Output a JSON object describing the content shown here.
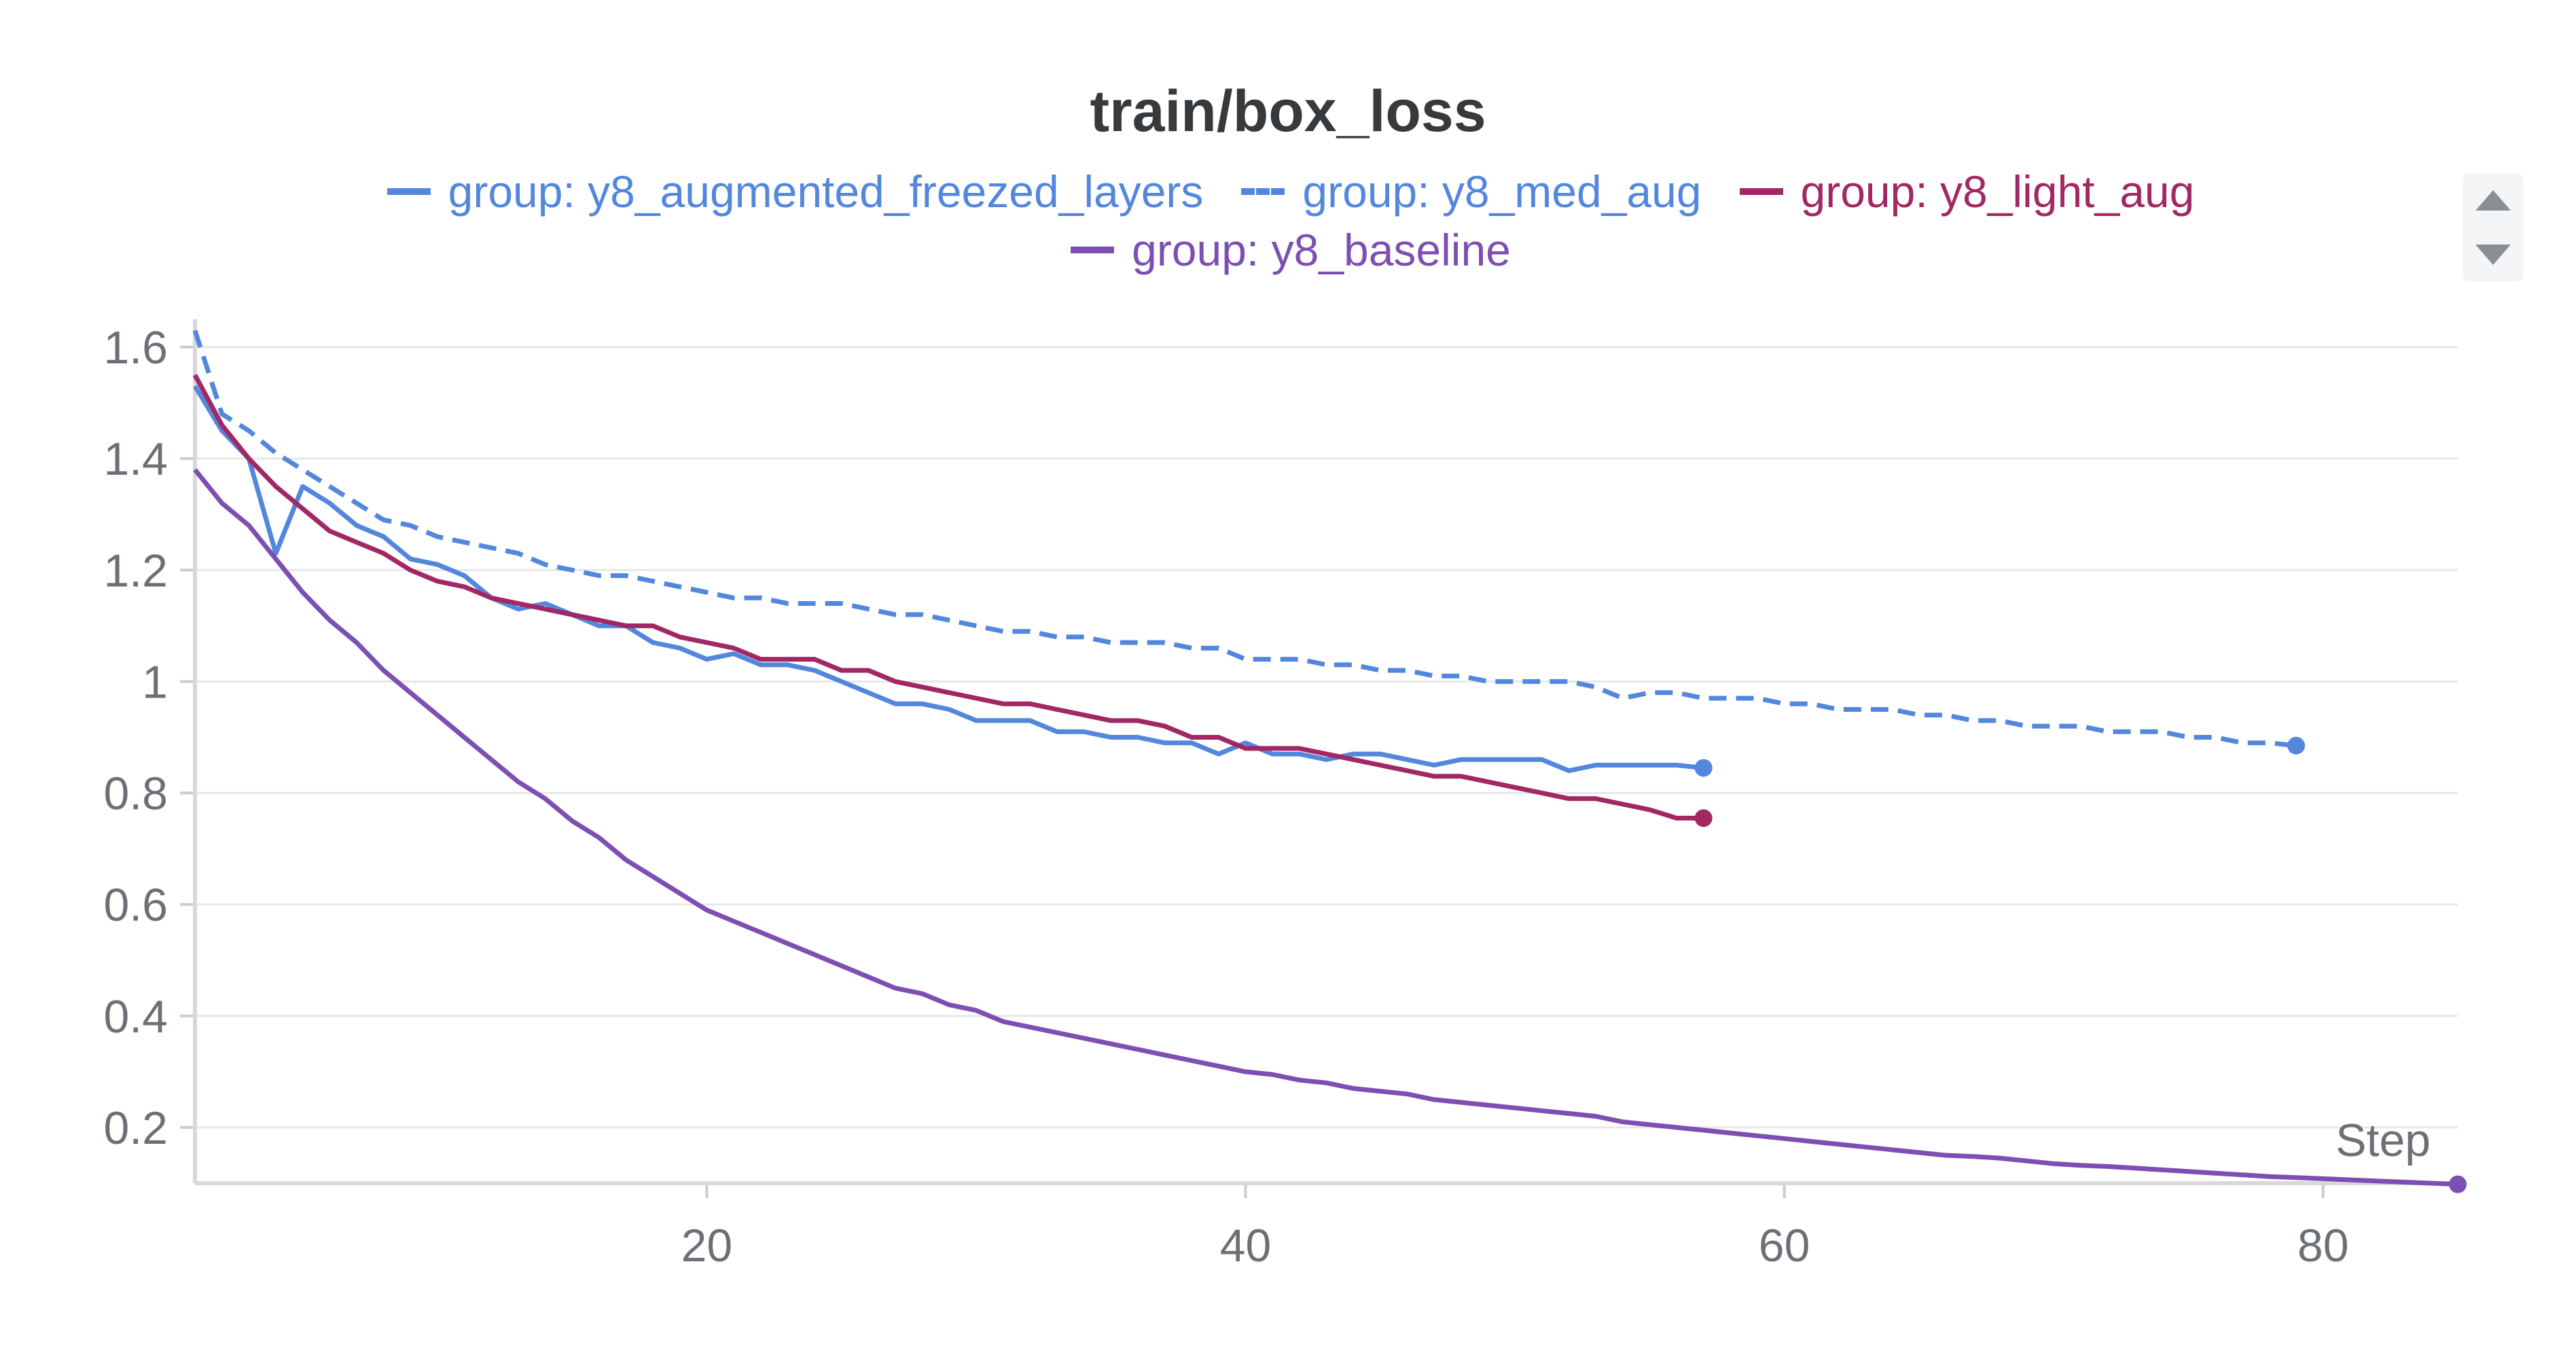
{
  "chart_data": {
    "type": "line",
    "title": "train/box_loss",
    "xlabel": "Step",
    "ylabel": "",
    "xlim": [
      1,
      85
    ],
    "ylim": [
      0.1,
      1.65
    ],
    "xticks": [
      20,
      40,
      60,
      80
    ],
    "yticks": [
      0.2,
      0.4,
      0.6,
      0.8,
      1,
      1.2,
      1.4,
      1.6
    ],
    "ytick_labels": [
      "0.2",
      "0.4",
      "0.6",
      "0.8",
      "1",
      "1.2",
      "1.4",
      "1.6"
    ],
    "grid": true,
    "legend_position": "top-center",
    "series": [
      {
        "name": "group: y8_augmented_freezed_layers",
        "color": "#5387dd",
        "dash": "solid",
        "x": [
          1,
          2,
          3,
          4,
          5,
          6,
          7,
          8,
          9,
          10,
          11,
          12,
          13,
          14,
          15,
          16,
          17,
          18,
          19,
          20,
          21,
          22,
          23,
          24,
          25,
          26,
          27,
          28,
          29,
          30,
          31,
          32,
          33,
          34,
          35,
          36,
          37,
          38,
          39,
          40,
          41,
          42,
          43,
          44,
          45,
          46,
          47,
          48,
          49,
          50,
          51,
          52,
          53,
          54,
          55,
          56,
          57
        ],
        "y": [
          1.53,
          1.45,
          1.4,
          1.23,
          1.35,
          1.32,
          1.28,
          1.26,
          1.22,
          1.21,
          1.19,
          1.15,
          1.13,
          1.14,
          1.12,
          1.1,
          1.1,
          1.07,
          1.06,
          1.04,
          1.05,
          1.03,
          1.03,
          1.02,
          1.0,
          0.98,
          0.96,
          0.96,
          0.95,
          0.93,
          0.93,
          0.93,
          0.91,
          0.91,
          0.9,
          0.9,
          0.89,
          0.89,
          0.87,
          0.89,
          0.87,
          0.87,
          0.86,
          0.87,
          0.87,
          0.86,
          0.85,
          0.86,
          0.86,
          0.86,
          0.86,
          0.84,
          0.85,
          0.85,
          0.85,
          0.85,
          0.845
        ]
      },
      {
        "name": "group: y8_med_aug",
        "color": "#5387dd",
        "dash": "dashed",
        "x": [
          1,
          2,
          3,
          4,
          5,
          6,
          7,
          8,
          9,
          10,
          11,
          12,
          13,
          14,
          15,
          16,
          17,
          18,
          19,
          20,
          21,
          22,
          23,
          24,
          25,
          26,
          27,
          28,
          29,
          30,
          31,
          32,
          33,
          34,
          35,
          36,
          37,
          38,
          39,
          40,
          41,
          42,
          43,
          44,
          45,
          46,
          47,
          48,
          49,
          50,
          51,
          52,
          53,
          54,
          55,
          56,
          57,
          58,
          59,
          60,
          61,
          62,
          63,
          64,
          65,
          66,
          67,
          68,
          69,
          70,
          71,
          72,
          73,
          74,
          75,
          76,
          77,
          78,
          79
        ],
        "y": [
          1.63,
          1.48,
          1.45,
          1.41,
          1.38,
          1.35,
          1.32,
          1.29,
          1.28,
          1.26,
          1.25,
          1.24,
          1.23,
          1.21,
          1.2,
          1.19,
          1.19,
          1.18,
          1.17,
          1.16,
          1.15,
          1.15,
          1.14,
          1.14,
          1.14,
          1.13,
          1.12,
          1.12,
          1.11,
          1.1,
          1.09,
          1.09,
          1.08,
          1.08,
          1.07,
          1.07,
          1.07,
          1.06,
          1.06,
          1.04,
          1.04,
          1.04,
          1.03,
          1.03,
          1.02,
          1.02,
          1.01,
          1.01,
          1.0,
          1.0,
          1.0,
          1.0,
          0.99,
          0.97,
          0.98,
          0.98,
          0.97,
          0.97,
          0.97,
          0.96,
          0.96,
          0.95,
          0.95,
          0.95,
          0.94,
          0.94,
          0.93,
          0.93,
          0.92,
          0.92,
          0.92,
          0.91,
          0.91,
          0.91,
          0.9,
          0.9,
          0.89,
          0.89,
          0.885
        ]
      },
      {
        "name": "group: y8_light_aug",
        "color": "#a12864",
        "dash": "solid",
        "x": [
          1,
          2,
          3,
          4,
          5,
          6,
          7,
          8,
          9,
          10,
          11,
          12,
          13,
          14,
          15,
          16,
          17,
          18,
          19,
          20,
          21,
          22,
          23,
          24,
          25,
          26,
          27,
          28,
          29,
          30,
          31,
          32,
          33,
          34,
          35,
          36,
          37,
          38,
          39,
          40,
          41,
          42,
          43,
          44,
          45,
          46,
          47,
          48,
          49,
          50,
          51,
          52,
          53,
          54,
          55,
          56,
          57
        ],
        "y": [
          1.55,
          1.46,
          1.4,
          1.35,
          1.31,
          1.27,
          1.25,
          1.23,
          1.2,
          1.18,
          1.17,
          1.15,
          1.14,
          1.13,
          1.12,
          1.11,
          1.1,
          1.1,
          1.08,
          1.07,
          1.06,
          1.04,
          1.04,
          1.04,
          1.02,
          1.02,
          1.0,
          0.99,
          0.98,
          0.97,
          0.96,
          0.96,
          0.95,
          0.94,
          0.93,
          0.93,
          0.92,
          0.9,
          0.9,
          0.88,
          0.88,
          0.88,
          0.87,
          0.86,
          0.85,
          0.84,
          0.83,
          0.83,
          0.82,
          0.81,
          0.8,
          0.79,
          0.79,
          0.78,
          0.77,
          0.755,
          0.755
        ]
      },
      {
        "name": "group: y8_baseline",
        "color": "#7e4fb3",
        "dash": "solid",
        "x": [
          1,
          2,
          3,
          4,
          5,
          6,
          7,
          8,
          9,
          10,
          11,
          12,
          13,
          14,
          15,
          16,
          17,
          18,
          19,
          20,
          21,
          22,
          23,
          24,
          25,
          26,
          27,
          28,
          29,
          30,
          31,
          32,
          33,
          34,
          35,
          36,
          37,
          38,
          39,
          40,
          41,
          42,
          43,
          44,
          45,
          46,
          47,
          48,
          49,
          50,
          51,
          52,
          53,
          54,
          55,
          56,
          57,
          58,
          59,
          60,
          61,
          62,
          63,
          64,
          65,
          66,
          67,
          68,
          69,
          70,
          71,
          72,
          73,
          74,
          75,
          76,
          77,
          78,
          79,
          80,
          81,
          82,
          83,
          84,
          85
        ],
        "y": [
          1.38,
          1.32,
          1.28,
          1.22,
          1.16,
          1.11,
          1.07,
          1.02,
          0.98,
          0.94,
          0.9,
          0.86,
          0.82,
          0.79,
          0.75,
          0.72,
          0.68,
          0.65,
          0.62,
          0.59,
          0.57,
          0.55,
          0.53,
          0.51,
          0.49,
          0.47,
          0.45,
          0.44,
          0.42,
          0.41,
          0.39,
          0.38,
          0.37,
          0.36,
          0.35,
          0.34,
          0.33,
          0.32,
          0.31,
          0.3,
          0.295,
          0.285,
          0.28,
          0.27,
          0.265,
          0.26,
          0.25,
          0.245,
          0.24,
          0.235,
          0.23,
          0.225,
          0.22,
          0.21,
          0.205,
          0.2,
          0.195,
          0.19,
          0.185,
          0.18,
          0.175,
          0.17,
          0.165,
          0.16,
          0.155,
          0.15,
          0.148,
          0.145,
          0.14,
          0.135,
          0.132,
          0.13,
          0.127,
          0.124,
          0.121,
          0.118,
          0.115,
          0.112,
          0.11,
          0.108,
          0.106,
          0.104,
          0.102,
          0.1,
          0.098
        ]
      }
    ]
  },
  "legend_controls": {
    "up_icon": "triangle-up-icon",
    "down_icon": "triangle-down-icon"
  }
}
